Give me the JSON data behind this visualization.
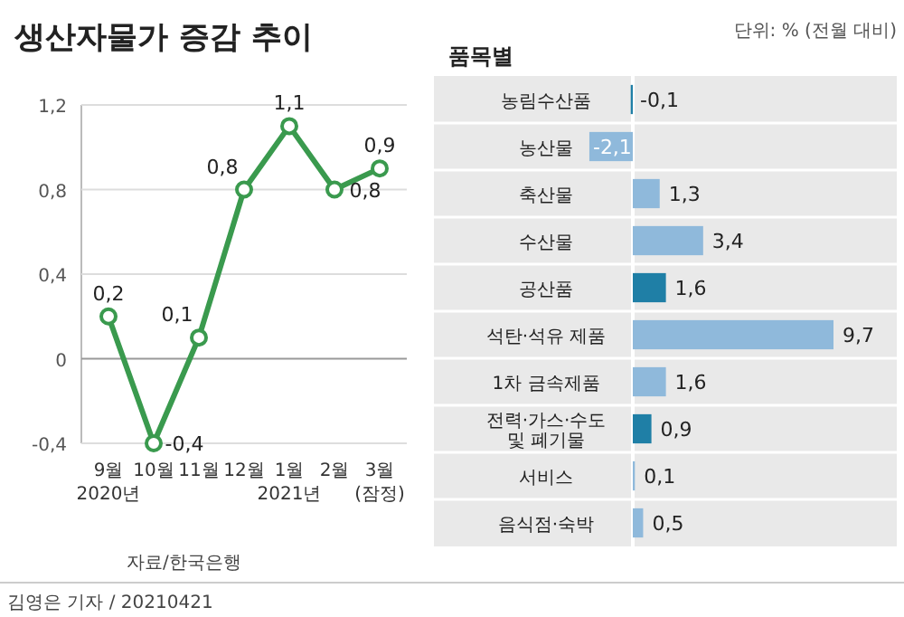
{
  "chart_data": [
    {
      "type": "line",
      "title": "생산자물가 증감 추이",
      "categories": [
        "9월\n2020년",
        "10월",
        "11월",
        "12월",
        "1월\n2021년",
        "2월",
        "3월\n(잠정)"
      ],
      "series": [
        {
          "color": "#3a9a4e",
          "values": [
            0.2,
            -0.4,
            0.1,
            0.8,
            1.1,
            0.8,
            0.9
          ],
          "value_labels": [
            "0,2",
            "-0,4",
            "0,1",
            "0,8",
            "1,1",
            "0,8",
            "0,9"
          ]
        }
      ],
      "ylim": [
        -0.4,
        1.2
      ],
      "yticks": [
        {
          "value": -0.4,
          "label": "-0,4"
        },
        0,
        {
          "value": 0.4,
          "label": "0,4"
        },
        {
          "value": 0.8,
          "label": "0,8"
        },
        {
          "value": 1.2,
          "label": "1,2"
        }
      ],
      "grid": "y",
      "marker": "circle",
      "line_style": "solid",
      "annotations": [
        "자료/한국은행",
        "김영은 기자 / 20210421"
      ]
    },
    {
      "type": "bar",
      "orientation": "horizontal",
      "title": "품목별",
      "subtitle": "단위: % (전월 대비)",
      "categories": [
        "농림수산품",
        "농산물",
        "축산물",
        "수산물",
        "공산품",
        "석탄·석유 제품",
        "1차 금속제품",
        "전력·가스·수도\n및 폐기물",
        "서비스",
        "음식점·숙박"
      ],
      "values": [
        -0.1,
        -2.1,
        1.3,
        3.4,
        1.6,
        9.7,
        1.6,
        0.9,
        0.1,
        0.5
      ],
      "colors": [
        "#1f7fa6",
        "#8fb9db",
        "#8fb9db",
        "#8fb9db",
        "#1f7fa6",
        "#8fb9db",
        "#8fb9db",
        "#1f7fa6",
        "#8fb9db",
        "#8fb9db"
      ],
      "value_labels": [
        "-0,1",
        "-2,1",
        "1,3",
        "3,4",
        "1,6",
        "9,7",
        "1,6",
        "0,9",
        "0,1",
        "0,5"
      ]
    }
  ]
}
